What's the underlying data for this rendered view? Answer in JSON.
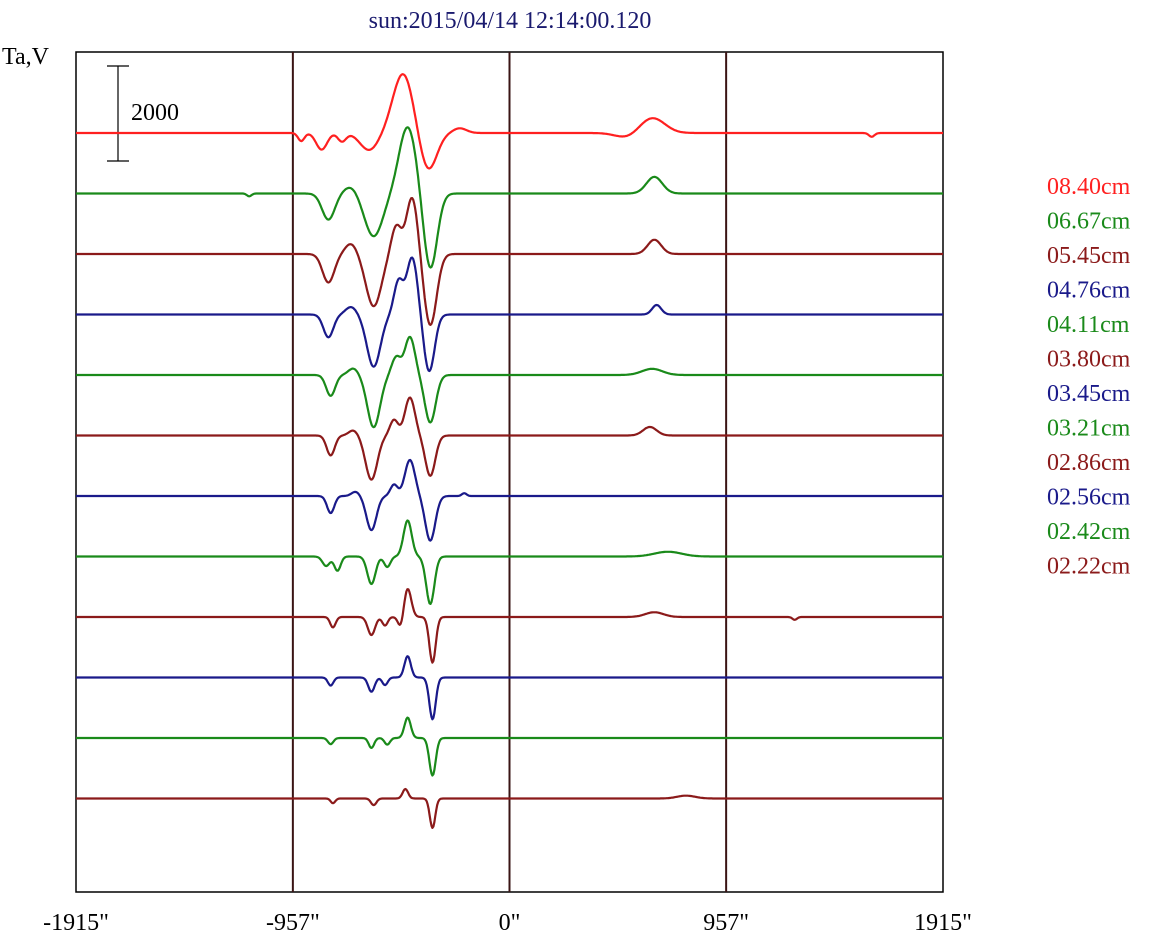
{
  "chart_data": {
    "type": "line",
    "title": "sun:2015/04/14 12:14:00.120",
    "ylabel": "Ta,V",
    "xlabel": "",
    "xlim": [
      -1915,
      1915
    ],
    "x_ticks": [
      {
        "value": -1915,
        "label": "-1915\""
      },
      {
        "value": -957,
        "label": "-957\""
      },
      {
        "value": 0,
        "label": "0\""
      },
      {
        "value": 957,
        "label": "957\""
      },
      {
        "value": 1915,
        "label": "1915\""
      }
    ],
    "vertical_lines": [
      -957,
      0,
      957
    ],
    "scale_bar": {
      "value": 2000,
      "label": "2000"
    },
    "series_spacing": 790,
    "legend_position": "right",
    "series": [
      {
        "name": "08.40cm",
        "color": "#ff2020",
        "features": [
          {
            "x": -920,
            "a": -170,
            "w": 14
          },
          {
            "x": -830,
            "a": -350,
            "w": 24
          },
          {
            "x": -740,
            "a": -180,
            "w": 18
          },
          {
            "x": -620,
            "a": -360,
            "w": 40
          },
          {
            "x": -470,
            "a": 1250,
            "w": 45
          },
          {
            "x": -360,
            "a": -800,
            "w": 38
          },
          {
            "x": -220,
            "a": 100,
            "w": 30
          },
          {
            "x": 630,
            "a": 320,
            "w": 55
          },
          {
            "x": 520,
            "a": -100,
            "w": 50
          },
          {
            "x": 1600,
            "a": -80,
            "w": 12
          }
        ]
      },
      {
        "name": "06.67cm",
        "color": "#1a8a1a",
        "features": [
          {
            "x": -800,
            "a": -550,
            "w": 28
          },
          {
            "x": -700,
            "a": 150,
            "w": 30
          },
          {
            "x": -600,
            "a": -900,
            "w": 40
          },
          {
            "x": -450,
            "a": 1400,
            "w": 38
          },
          {
            "x": -350,
            "a": -1600,
            "w": 30
          },
          {
            "x": 640,
            "a": 350,
            "w": 35
          },
          {
            "x": -1150,
            "a": -60,
            "w": 10
          }
        ]
      },
      {
        "name": "05.45cm",
        "color": "#8b1a1a",
        "features": [
          {
            "x": -800,
            "a": -600,
            "w": 26
          },
          {
            "x": -700,
            "a": 220,
            "w": 26
          },
          {
            "x": -600,
            "a": -1100,
            "w": 34
          },
          {
            "x": -500,
            "a": 600,
            "w": 22
          },
          {
            "x": -430,
            "a": 1200,
            "w": 25
          },
          {
            "x": -350,
            "a": -1500,
            "w": 28
          },
          {
            "x": 640,
            "a": 300,
            "w": 30
          }
        ]
      },
      {
        "name": "04.76cm",
        "color": "#1a1a8a",
        "features": [
          {
            "x": -800,
            "a": -480,
            "w": 22
          },
          {
            "x": -700,
            "a": 160,
            "w": 24
          },
          {
            "x": -600,
            "a": -1100,
            "w": 30
          },
          {
            "x": -490,
            "a": 700,
            "w": 20
          },
          {
            "x": -430,
            "a": 1200,
            "w": 24
          },
          {
            "x": -355,
            "a": -1200,
            "w": 24
          },
          {
            "x": 650,
            "a": 200,
            "w": 20
          }
        ]
      },
      {
        "name": "04.11cm",
        "color": "#1a8a1a",
        "features": [
          {
            "x": -790,
            "a": -440,
            "w": 20
          },
          {
            "x": -690,
            "a": 140,
            "w": 22
          },
          {
            "x": -600,
            "a": -1100,
            "w": 28
          },
          {
            "x": -500,
            "a": 380,
            "w": 20
          },
          {
            "x": -440,
            "a": 800,
            "w": 22
          },
          {
            "x": -350,
            "a": -1000,
            "w": 24
          },
          {
            "x": 630,
            "a": 130,
            "w": 45
          }
        ]
      },
      {
        "name": "03.80cm",
        "color": "#8b1a1a",
        "features": [
          {
            "x": -790,
            "a": -420,
            "w": 18
          },
          {
            "x": -690,
            "a": 110,
            "w": 20
          },
          {
            "x": -610,
            "a": -930,
            "w": 26
          },
          {
            "x": -510,
            "a": 330,
            "w": 18
          },
          {
            "x": -440,
            "a": 800,
            "w": 22
          },
          {
            "x": -350,
            "a": -850,
            "w": 22
          },
          {
            "x": 620,
            "a": 180,
            "w": 30
          }
        ]
      },
      {
        "name": "03.45cm",
        "color": "#1a1a8a",
        "features": [
          {
            "x": -790,
            "a": -360,
            "w": 16
          },
          {
            "x": -680,
            "a": 90,
            "w": 18
          },
          {
            "x": -610,
            "a": -720,
            "w": 22
          },
          {
            "x": -510,
            "a": 240,
            "w": 16
          },
          {
            "x": -440,
            "a": 760,
            "w": 22
          },
          {
            "x": -350,
            "a": -940,
            "w": 22
          },
          {
            "x": -200,
            "a": 60,
            "w": 10
          }
        ]
      },
      {
        "name": "03.21cm",
        "color": "#1a8a1a",
        "features": [
          {
            "x": -810,
            "a": -200,
            "w": 16
          },
          {
            "x": -760,
            "a": -300,
            "w": 14
          },
          {
            "x": -610,
            "a": -580,
            "w": 18
          },
          {
            "x": -540,
            "a": -220,
            "w": 14
          },
          {
            "x": -450,
            "a": 760,
            "w": 18
          },
          {
            "x": -350,
            "a": -1000,
            "w": 18
          },
          {
            "x": 700,
            "a": 100,
            "w": 60
          }
        ]
      },
      {
        "name": "02.86cm",
        "color": "#8b1a1a",
        "features": [
          {
            "x": -780,
            "a": -220,
            "w": 12
          },
          {
            "x": -610,
            "a": -380,
            "w": 16
          },
          {
            "x": -550,
            "a": -180,
            "w": 12
          },
          {
            "x": -480,
            "a": -240,
            "w": 12
          },
          {
            "x": -450,
            "a": 600,
            "w": 16
          },
          {
            "x": -340,
            "a": -960,
            "w": 14
          },
          {
            "x": 640,
            "a": 100,
            "w": 40
          },
          {
            "x": 1260,
            "a": -60,
            "w": 10
          }
        ]
      },
      {
        "name": "02.56cm",
        "color": "#1a1a8a",
        "features": [
          {
            "x": -790,
            "a": -170,
            "w": 12
          },
          {
            "x": -610,
            "a": -300,
            "w": 14
          },
          {
            "x": -550,
            "a": -160,
            "w": 12
          },
          {
            "x": -450,
            "a": 450,
            "w": 14
          },
          {
            "x": -340,
            "a": -880,
            "w": 14
          }
        ]
      },
      {
        "name": "02.42cm",
        "color": "#1a8a1a",
        "features": [
          {
            "x": -790,
            "a": -130,
            "w": 12
          },
          {
            "x": -610,
            "a": -210,
            "w": 12
          },
          {
            "x": -540,
            "a": -140,
            "w": 12
          },
          {
            "x": -450,
            "a": 430,
            "w": 14
          },
          {
            "x": -340,
            "a": -790,
            "w": 14
          }
        ]
      },
      {
        "name": "02.22cm",
        "color": "#8b1a1a",
        "features": [
          {
            "x": -780,
            "a": -100,
            "w": 10
          },
          {
            "x": -600,
            "a": -140,
            "w": 12
          },
          {
            "x": -460,
            "a": 200,
            "w": 12
          },
          {
            "x": -340,
            "a": -620,
            "w": 12
          },
          {
            "x": 780,
            "a": 60,
            "w": 40
          }
        ]
      }
    ]
  }
}
